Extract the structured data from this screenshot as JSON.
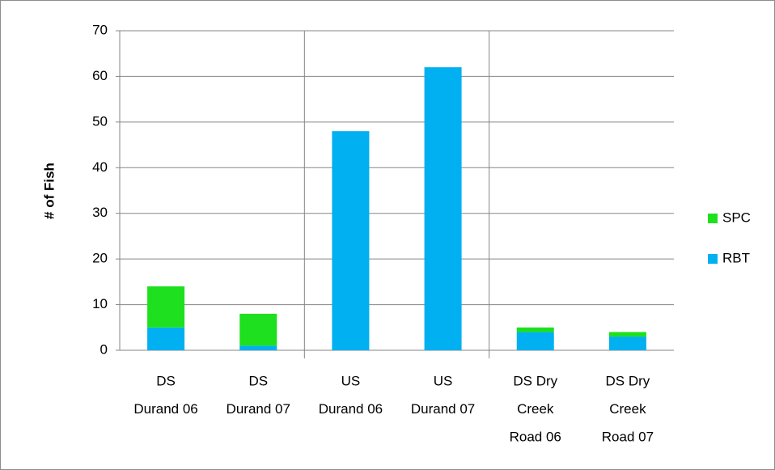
{
  "chart_data": {
    "type": "stacked_bar",
    "y_label": "# of Fish",
    "categories": [
      [
        "DS",
        "Durand 06"
      ],
      [
        "DS",
        "Durand 07"
      ],
      [
        "US",
        "Durand 06"
      ],
      [
        "US",
        "Durand 07"
      ],
      [
        "DS Dry",
        "Creek",
        "Road 06"
      ],
      [
        "DS Dry",
        "Creek",
        "Road 07"
      ]
    ],
    "series": [
      {
        "name": "RBT",
        "color": "#00b0f0",
        "values": [
          5,
          1,
          48,
          62,
          4,
          3
        ]
      },
      {
        "name": "SPC",
        "color": "#1ee01e",
        "values": [
          9,
          7,
          0,
          0,
          1,
          1
        ]
      }
    ],
    "ylim": [
      0,
      70
    ],
    "yticks": [
      0,
      10,
      20,
      30,
      40,
      50,
      60,
      70
    ],
    "grid": true,
    "legend": "right"
  }
}
